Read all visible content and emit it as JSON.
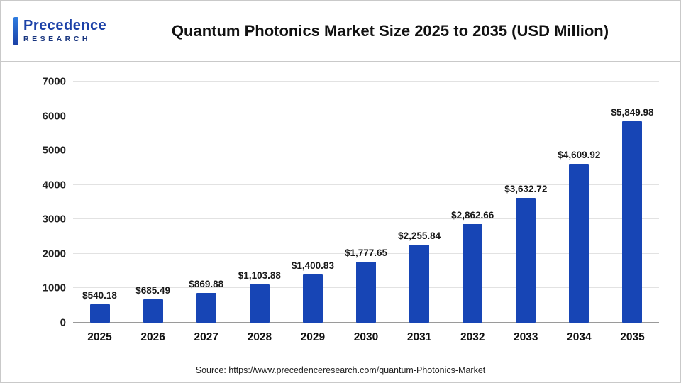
{
  "header": {
    "logo": {
      "line1": "Precedence",
      "line2": "RESEARCH"
    },
    "title": "Quantum Photonics Market Size 2025 to 2035 (USD Million)"
  },
  "chart_data": {
    "type": "bar",
    "title": "Quantum Photonics Market Size 2025 to 2035 (USD Million)",
    "categories": [
      "2025",
      "2026",
      "2027",
      "2028",
      "2029",
      "2030",
      "2031",
      "2032",
      "2033",
      "2034",
      "2035"
    ],
    "values": [
      540.18,
      685.49,
      869.88,
      1103.88,
      1400.83,
      1777.65,
      2255.84,
      2862.66,
      3632.72,
      4609.92,
      5849.98
    ],
    "value_labels": [
      "$540.18",
      "$685.49",
      "$869.88",
      "$1,103.88",
      "$1,400.83",
      "$1,777.65",
      "$2,255.84",
      "$2,862.66",
      "$3,632.72",
      "$4,609.92",
      "$5,849.98"
    ],
    "xlabel": "",
    "ylabel": "",
    "ylim": [
      0,
      7000
    ],
    "yticks": [
      0,
      1000,
      2000,
      3000,
      4000,
      5000,
      6000,
      7000
    ],
    "grid": true,
    "legend_position": "none",
    "bar_color": "#1745b5"
  },
  "footer": {
    "source": "Source: https://www.precedenceresearch.com/quantum-Photonics-Market"
  }
}
